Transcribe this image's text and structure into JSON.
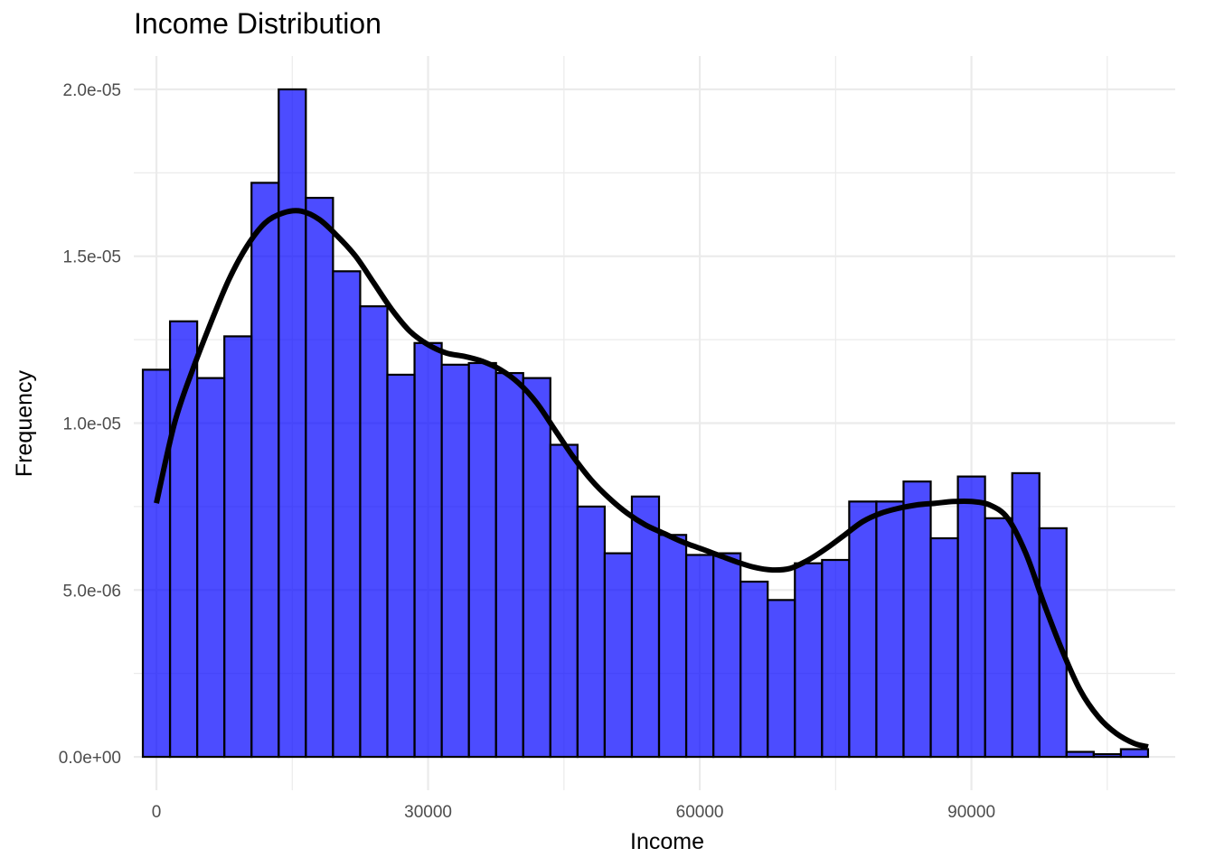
{
  "chart_data": {
    "type": "bar",
    "title": "Income Distribution",
    "xlabel": "Income",
    "ylabel": "Frequency",
    "xlim": [
      -2500,
      112500
    ],
    "ylim": [
      -1e-06,
      2.1e-05
    ],
    "x_ticks": [
      {
        "value": 0,
        "label": "0"
      },
      {
        "value": 30000,
        "label": "30000"
      },
      {
        "value": 60000,
        "label": "60000"
      },
      {
        "value": 90000,
        "label": "90000"
      }
    ],
    "y_ticks": [
      {
        "value": 0,
        "label": "0.0e+00"
      },
      {
        "value": 5e-06,
        "label": "5.0e-06"
      },
      {
        "value": 1e-05,
        "label": "1.0e-05"
      },
      {
        "value": 1.5e-05,
        "label": "1.5e-05"
      },
      {
        "value": 2e-05,
        "label": "2.0e-05"
      }
    ],
    "grid": true,
    "bins": {
      "start": -1500,
      "width": 3000,
      "values": [
        1.16e-05,
        1.305e-05,
        1.135e-05,
        1.26e-05,
        1.72e-05,
        2e-05,
        1.675e-05,
        1.455e-05,
        1.35e-05,
        1.145e-05,
        1.24e-05,
        1.175e-05,
        1.18e-05,
        1.15e-05,
        1.135e-05,
        9.35e-06,
        7.5e-06,
        6.1e-06,
        7.8e-06,
        6.65e-06,
        6.05e-06,
        6.1e-06,
        5.25e-06,
        4.7e-06,
        5.8e-06,
        5.9e-06,
        7.65e-06,
        7.65e-06,
        8.25e-06,
        6.55e-06,
        8.4e-06,
        7.15e-06,
        8.5e-06,
        6.85e-06,
        1.5e-07,
        8e-08,
        2.3e-07
      ]
    },
    "density": {
      "x": [
        0,
        2000,
        4000,
        6000,
        8000,
        10000,
        12000,
        14000,
        16000,
        18000,
        20000,
        22000,
        24000,
        26000,
        28000,
        30000,
        32000,
        34000,
        36000,
        38000,
        40000,
        42000,
        44000,
        46000,
        48000,
        50000,
        52000,
        54000,
        56000,
        58000,
        60000,
        62000,
        64000,
        66000,
        68000,
        70000,
        72000,
        74000,
        76000,
        78000,
        80000,
        82000,
        84000,
        86000,
        88000,
        90000,
        92000,
        94000,
        96000,
        98000,
        100000,
        102000,
        104000,
        106000,
        108000,
        109500
      ],
      "y": [
        7.6e-06,
        1e-05,
        1.16e-05,
        1.3e-05,
        1.43e-05,
        1.53e-05,
        1.6e-05,
        1.63e-05,
        1.635e-05,
        1.61e-05,
        1.56e-05,
        1.5e-05,
        1.42e-05,
        1.34e-05,
        1.275e-05,
        1.235e-05,
        1.21e-05,
        1.2e-05,
        1.185e-05,
        1.16e-05,
        1.12e-05,
        1.06e-05,
        9.8e-06,
        9e-06,
        8.3e-06,
        7.75e-06,
        7.3e-06,
        6.95e-06,
        6.7e-06,
        6.45e-06,
        6.25e-06,
        6.05e-06,
        5.85e-06,
        5.68e-06,
        5.6e-06,
        5.65e-06,
        5.9e-06,
        6.25e-06,
        6.65e-06,
        7.05e-06,
        7.3e-06,
        7.45e-06,
        7.55e-06,
        7.6e-06,
        7.65e-06,
        7.65e-06,
        7.55e-06,
        7.15e-06,
        6.1e-06,
        4.6e-06,
        3.2e-06,
        2e-06,
        1.2e-06,
        7e-07,
        4e-07,
        3e-07
      ]
    },
    "colors": {
      "bar_fill": "#0000ff",
      "bar_fill_opacity": 0.7,
      "bar_stroke": "#000000",
      "density_line": "#000000",
      "grid_major": "#ebebeb",
      "grid_minor": "#ebebeb"
    }
  }
}
